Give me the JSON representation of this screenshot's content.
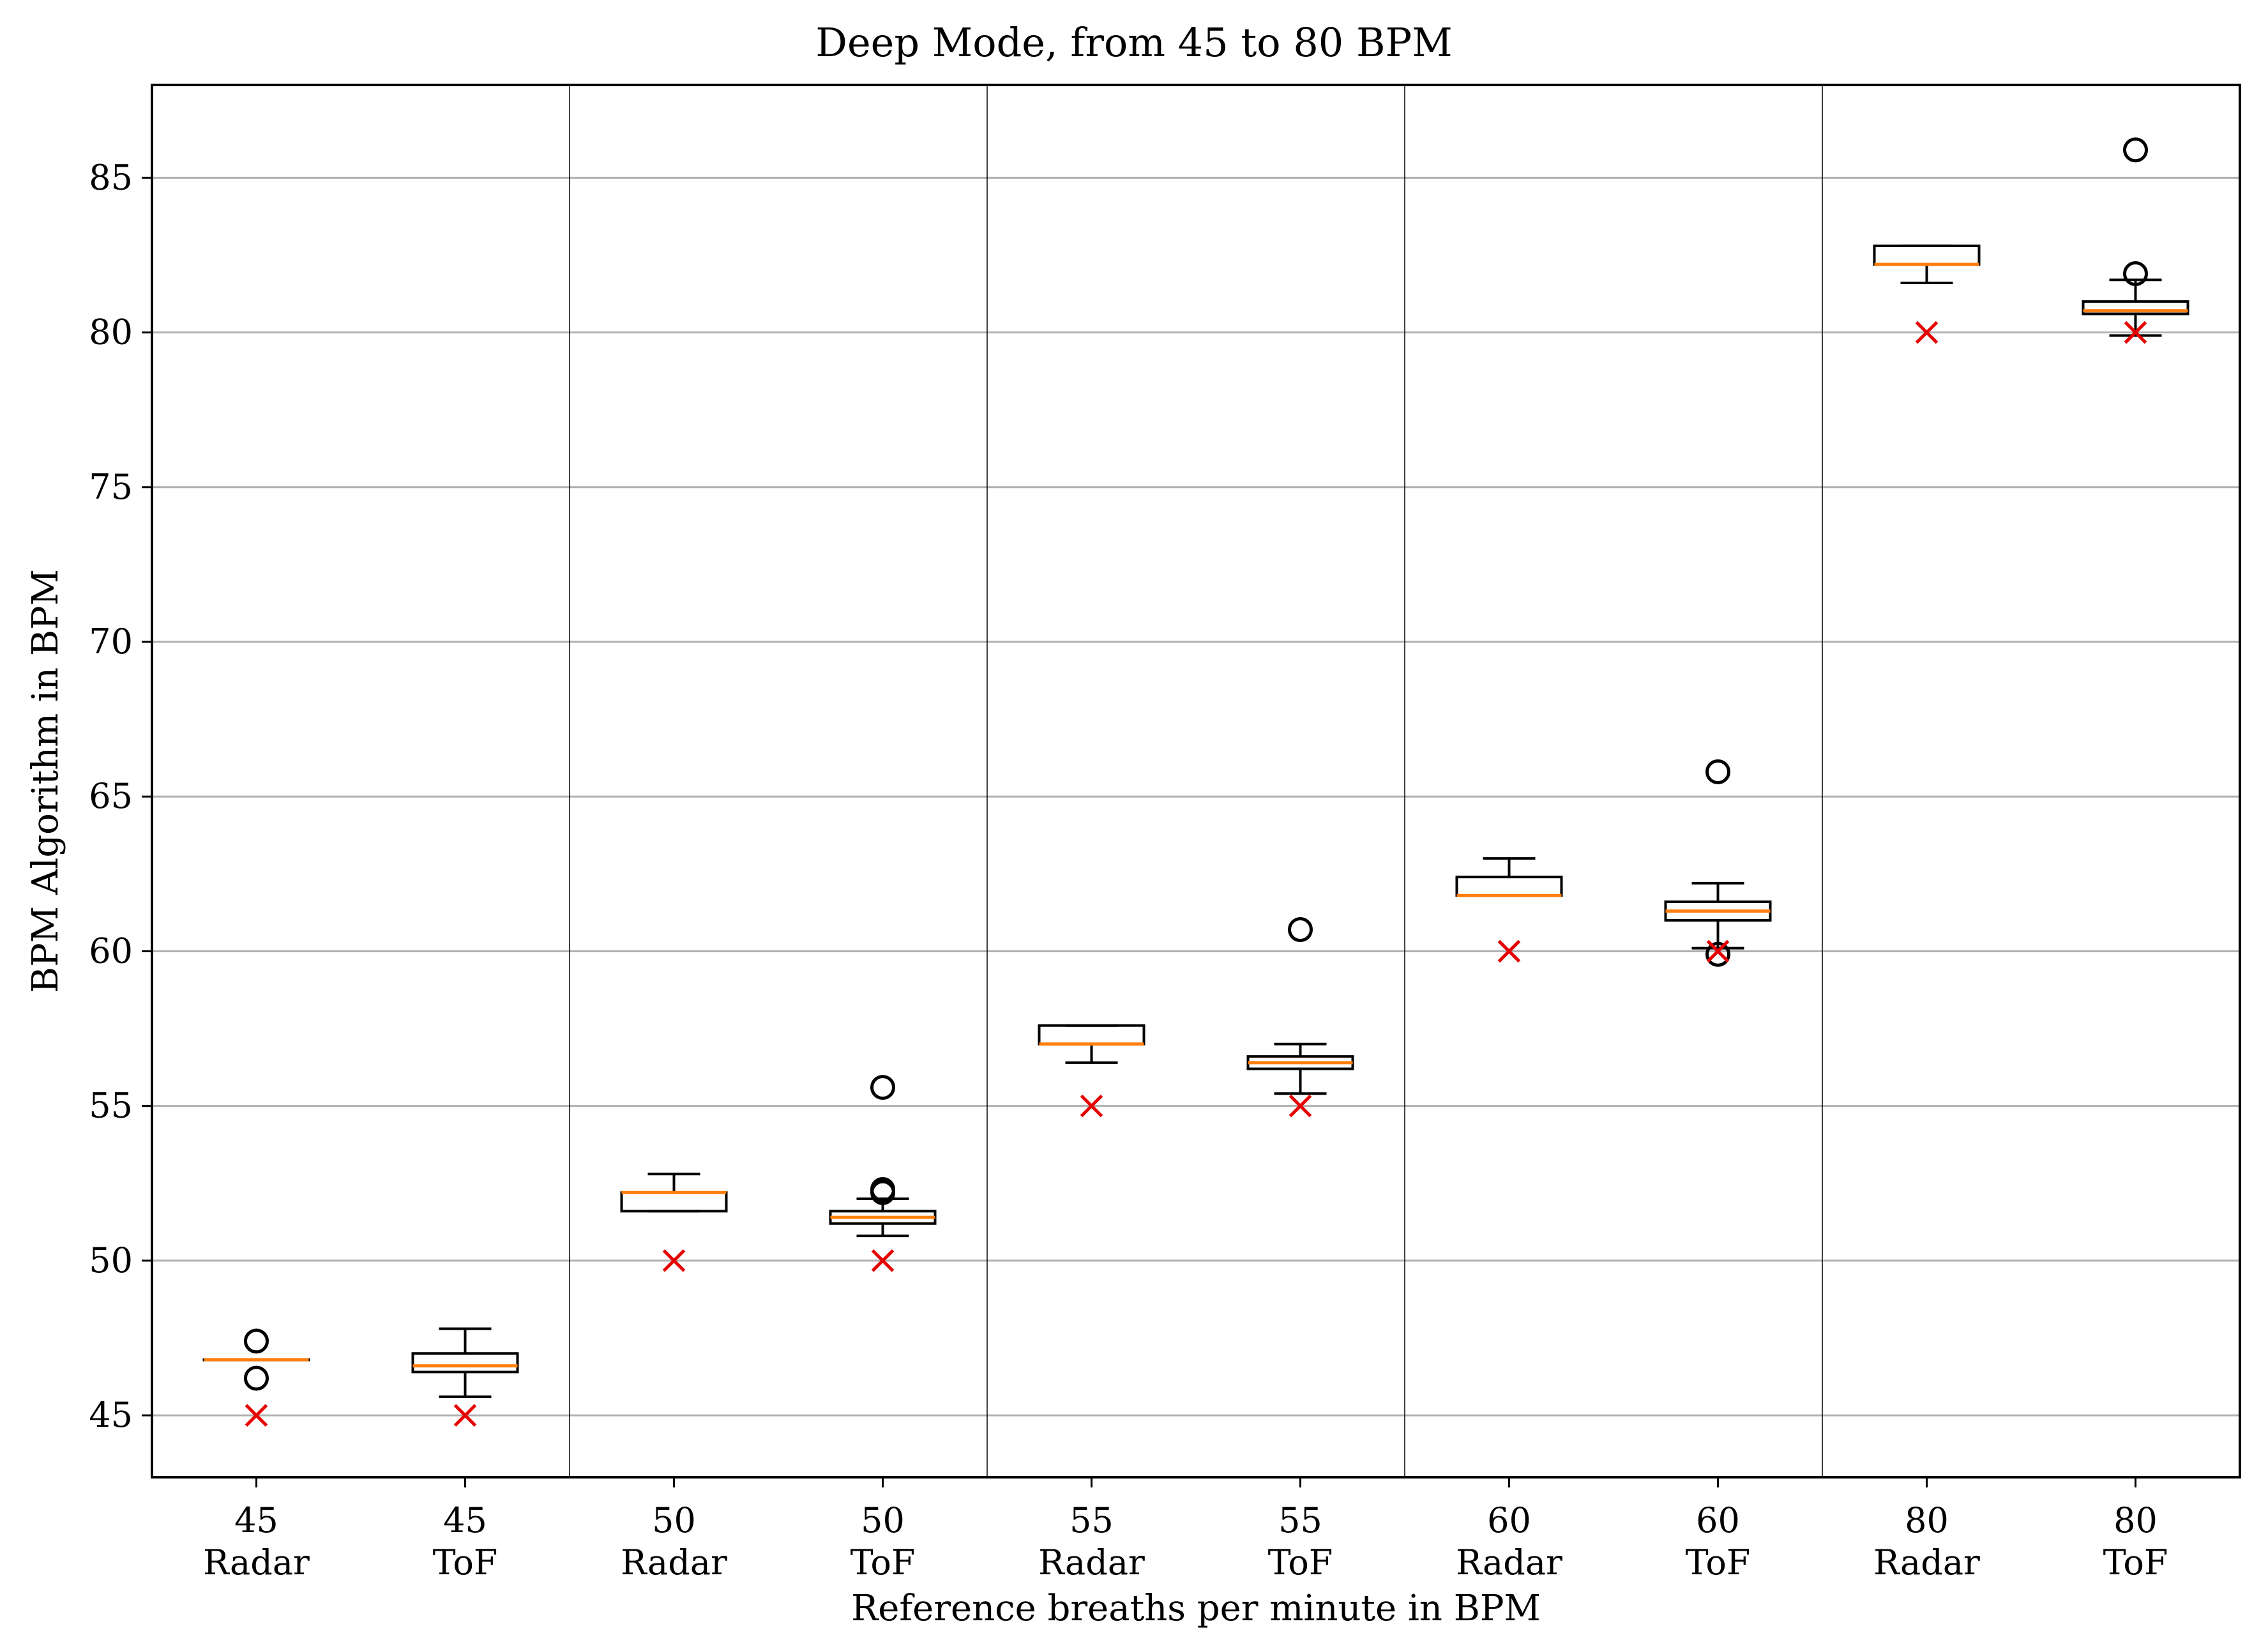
{
  "chart_data": {
    "type": "boxplot",
    "title": "Deep Mode, from 45 to 80 BPM",
    "xlabel": "Reference breaths per minute in BPM",
    "ylabel": "BPM Algorithm in BPM",
    "ylim": [
      43.0,
      88.0
    ],
    "yticks": [
      45,
      50,
      55,
      60,
      65,
      70,
      75,
      80,
      85
    ],
    "grid": "horizontal",
    "categories": [
      {
        "ref": "45",
        "sensor": "Radar"
      },
      {
        "ref": "45",
        "sensor": "ToF"
      },
      {
        "ref": "50",
        "sensor": "Radar"
      },
      {
        "ref": "50",
        "sensor": "ToF"
      },
      {
        "ref": "55",
        "sensor": "Radar"
      },
      {
        "ref": "55",
        "sensor": "ToF"
      },
      {
        "ref": "60",
        "sensor": "Radar"
      },
      {
        "ref": "60",
        "sensor": "ToF"
      },
      {
        "ref": "80",
        "sensor": "Radar"
      },
      {
        "ref": "80",
        "sensor": "ToF"
      }
    ],
    "boxes": [
      {
        "whislo": 46.8,
        "q1": 46.8,
        "med": 46.8,
        "q3": 46.8,
        "whishi": 46.8,
        "fliers": [
          47.4,
          46.2
        ],
        "reference": 45
      },
      {
        "whislo": 45.6,
        "q1": 46.4,
        "med": 46.6,
        "q3": 47.0,
        "whishi": 47.8,
        "fliers": [],
        "reference": 45
      },
      {
        "whislo": 51.6,
        "q1": 51.6,
        "med": 52.2,
        "q3": 52.2,
        "whishi": 52.8,
        "fliers": [],
        "reference": 50
      },
      {
        "whislo": 50.8,
        "q1": 51.2,
        "med": 51.4,
        "q3": 51.6,
        "whishi": 52.0,
        "fliers": [
          55.6,
          52.3,
          52.2
        ],
        "reference": 50
      },
      {
        "whislo": 56.4,
        "q1": 57.0,
        "med": 57.0,
        "q3": 57.6,
        "whishi": 57.6,
        "fliers": [],
        "reference": 55
      },
      {
        "whislo": 55.4,
        "q1": 56.2,
        "med": 56.4,
        "q3": 56.6,
        "whishi": 57.0,
        "fliers": [
          60.7
        ],
        "reference": 55
      },
      {
        "whislo": 61.8,
        "q1": 61.8,
        "med": 61.8,
        "q3": 62.4,
        "whishi": 63.0,
        "fliers": [],
        "reference": 60
      },
      {
        "whislo": 60.1,
        "q1": 61.0,
        "med": 61.3,
        "q3": 61.6,
        "whishi": 62.2,
        "fliers": [
          65.8,
          59.9
        ],
        "reference": 60
      },
      {
        "whislo": 81.6,
        "q1": 82.2,
        "med": 82.2,
        "q3": 82.8,
        "whishi": 82.8,
        "fliers": [],
        "reference": 80
      },
      {
        "whislo": 79.9,
        "q1": 80.6,
        "med": 80.7,
        "q3": 81.0,
        "whishi": 81.7,
        "fliers": [
          85.9,
          81.9
        ],
        "reference": 80
      }
    ],
    "group_separators_after": [
      1,
      3,
      5,
      7
    ],
    "colors": {
      "box": "#000000",
      "median": "#ff7f0e",
      "reference_marker": "#e60000",
      "grid": "#b0b0b0"
    }
  }
}
